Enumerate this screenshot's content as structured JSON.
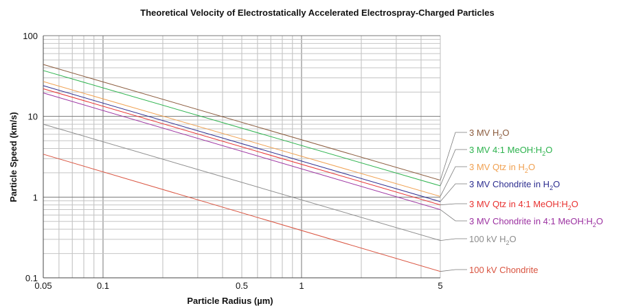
{
  "chart_data": {
    "type": "line",
    "title": "Theoretical Velocity of Electrostatically Accelerated Electrospray-Charged Particles",
    "xlabel": "Particle Radius (µm)",
    "ylabel": "Particle Speed (km/s)",
    "x_scale": "log",
    "y_scale": "log",
    "xlim": [
      0.05,
      5
    ],
    "ylim": [
      0.1,
      100
    ],
    "x_ticks": [
      0.05,
      0.1,
      0.5,
      1,
      5
    ],
    "x_tick_labels": [
      "0.05",
      "0.1",
      "0.5",
      "1",
      "5"
    ],
    "y_ticks": [
      0.1,
      1,
      10,
      100
    ],
    "y_tick_labels": [
      "0.1",
      "1",
      "10",
      "100"
    ],
    "grid": true,
    "legend_position": "right, labels connected to line ends",
    "series": [
      {
        "name": "3 MV H2O",
        "label_main": "3 MV H",
        "label_sub": "2",
        "label_tail": "O",
        "color": "#8a5a3c",
        "x": [
          0.05,
          5
        ],
        "y": [
          44,
          1.62
        ]
      },
      {
        "name": "3 MV 4:1 MeOH:H2O",
        "label_main": "3 MV 4:1 MeOH:H",
        "label_sub": "2",
        "label_tail": "O",
        "color": "#2bb24c",
        "x": [
          0.05,
          5
        ],
        "y": [
          37,
          1.38
        ]
      },
      {
        "name": "3 MV Qtz in H2O",
        "label_main": "3 MV Qtz in H",
        "label_sub": "2",
        "label_tail": "O",
        "color": "#f0a050",
        "x": [
          0.05,
          5
        ],
        "y": [
          27,
          1.02
        ]
      },
      {
        "name": "3 MV Chondrite in H2O",
        "label_main": "3 MV Chondrite in H",
        "label_sub": "2",
        "label_tail": "O",
        "color": "#2c2d8f",
        "x": [
          0.05,
          5
        ],
        "y": [
          24,
          0.88
        ]
      },
      {
        "name": "3 MV Qtz in 4:1 MeOH:H2O",
        "label_main": "3 MV Qtz in 4:1 MeOH:H",
        "label_sub": "2",
        "label_tail": "O",
        "color": "#e8302e",
        "x": [
          0.05,
          5
        ],
        "y": [
          22,
          0.8
        ]
      },
      {
        "name": "3 MV Chondrite in 4:1 MeOH:H2O",
        "label_main": "3 MV Chondrite in 4:1 MeOH:H",
        "label_sub": "2",
        "label_tail": "O",
        "color": "#9b30a0",
        "x": [
          0.05,
          5
        ],
        "y": [
          19.5,
          0.7
        ]
      },
      {
        "name": "100 kV H2O",
        "label_main": "100 kV H",
        "label_sub": "2",
        "label_tail": "O",
        "color": "#8c8c8c",
        "x": [
          0.05,
          5
        ],
        "y": [
          8,
          0.29
        ]
      },
      {
        "name": "100 kV Chondrite",
        "label_main": "100 kV Chondrite",
        "label_sub": "",
        "label_tail": "",
        "color": "#d9533f",
        "x": [
          0.05,
          5
        ],
        "y": [
          3.4,
          0.12
        ]
      }
    ]
  }
}
